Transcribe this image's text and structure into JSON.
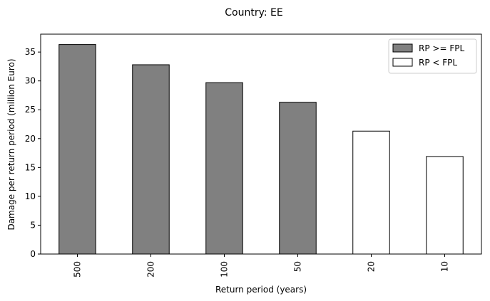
{
  "chart_data": {
    "type": "bar",
    "title": "Country: EE",
    "xlabel": "Return period (years)",
    "ylabel": "Damage per return period (million Euro)",
    "categories": [
      "500",
      "200",
      "100",
      "50",
      "20",
      "10"
    ],
    "values": [
      36.3,
      32.8,
      29.7,
      26.3,
      21.3,
      16.9
    ],
    "groups": [
      "RP >= FPL",
      "RP >= FPL",
      "RP >= FPL",
      "RP >= FPL",
      "RP < FPL",
      "RP < FPL"
    ],
    "ylim": [
      0,
      38.1
    ],
    "yticks": [
      0,
      5,
      10,
      15,
      20,
      25,
      30,
      35
    ],
    "grid": false,
    "legend": {
      "placement": "top-right",
      "entries": [
        {
          "label": "RP >= FPL",
          "color": "#808080"
        },
        {
          "label": "RP < FPL",
          "color": "#ffffff"
        }
      ]
    },
    "edge_color": "#000000"
  }
}
